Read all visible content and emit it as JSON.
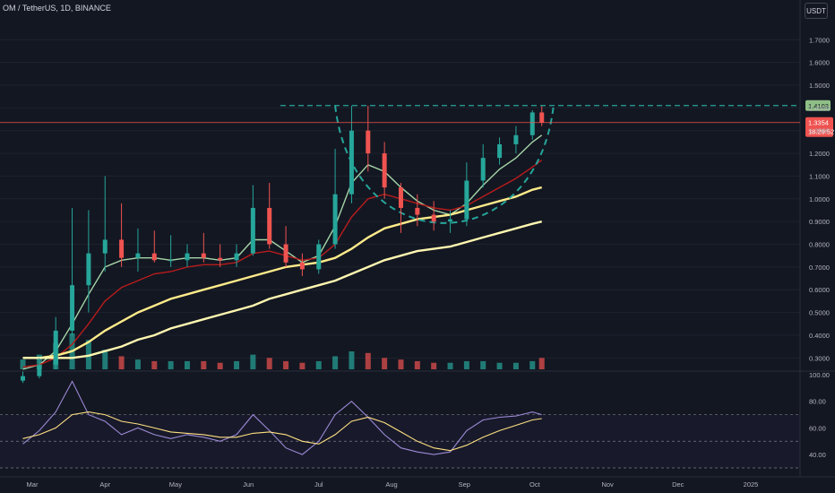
{
  "header": {
    "symbol_title": "OM / TetherUS, 1D, BINANCE",
    "unit_button": "USDT"
  },
  "colors": {
    "background": "#131722",
    "up": "#26a69a",
    "down": "#ef5350",
    "ema_short": "#a5d6a7",
    "ema_mid": "#b71c1c",
    "ma_long_1": "#ffeb8a",
    "ma_long_2": "#fff7b0",
    "pattern": "#26a69a",
    "price_line": "#ef5350",
    "rsi": "#9c8ad6",
    "rsi_ma": "#ffe082"
  },
  "price_axis": {
    "ticks": [
      "1.7000",
      "1.6000",
      "1.5000",
      "1.4000",
      "1.3000",
      "1.2000",
      "1.1000",
      "1.0000",
      "0.9000",
      "0.8000",
      "0.7000",
      "0.6000",
      "0.5000",
      "0.4000",
      "0.3000"
    ],
    "resistance_label": "1.4103",
    "last_price_label": "1.3354",
    "countdown_label": "18:29:52"
  },
  "rsi_axis": {
    "ticks": [
      "100.00",
      "80.00",
      "60.00",
      "40.00"
    ]
  },
  "time_axis": {
    "labels": [
      "Mar",
      "Apr",
      "May",
      "Jun",
      "Jul",
      "Aug",
      "Sep",
      "Oct",
      "Nov",
      "Dec",
      "2025"
    ]
  },
  "chart_data": {
    "type": "candlestick",
    "title": "OM / TetherUS, 1D, BINANCE",
    "ylim": [
      0.25,
      1.78
    ],
    "resistance": 1.4103,
    "last_price": 1.3354,
    "dates": [
      "2024-02-26",
      "2024-03-04",
      "2024-03-11",
      "2024-03-18",
      "2024-03-25",
      "2024-04-01",
      "2024-04-08",
      "2024-04-15",
      "2024-04-22",
      "2024-04-29",
      "2024-05-06",
      "2024-05-13",
      "2024-05-20",
      "2024-05-27",
      "2024-06-03",
      "2024-06-10",
      "2024-06-17",
      "2024-06-24",
      "2024-07-01",
      "2024-07-08",
      "2024-07-15",
      "2024-07-22",
      "2024-07-29",
      "2024-08-05",
      "2024-08-12",
      "2024-08-19",
      "2024-08-26",
      "2024-09-02",
      "2024-09-09",
      "2024-09-16",
      "2024-09-23",
      "2024-09-30",
      "2024-10-04"
    ],
    "open": [
      0.2,
      0.22,
      0.27,
      0.42,
      0.62,
      0.76,
      0.82,
      0.74,
      0.76,
      0.73,
      0.73,
      0.76,
      0.74,
      0.73,
      0.76,
      0.96,
      0.8,
      0.72,
      0.69,
      0.8,
      1.02,
      1.3,
      1.2,
      1.05,
      0.96,
      0.93,
      0.9,
      0.91,
      1.08,
      1.18,
      1.24,
      1.28,
      1.38
    ],
    "high": [
      0.24,
      0.3,
      0.48,
      0.96,
      0.95,
      1.1,
      0.98,
      0.87,
      0.86,
      0.84,
      0.8,
      0.85,
      0.8,
      0.8,
      1.06,
      1.07,
      0.88,
      0.76,
      0.82,
      1.22,
      1.41,
      1.41,
      1.25,
      1.07,
      1.02,
      0.99,
      0.95,
      1.16,
      1.24,
      1.27,
      1.32,
      1.39,
      1.41
    ],
    "low": [
      0.19,
      0.21,
      0.25,
      0.4,
      0.5,
      0.68,
      0.7,
      0.68,
      0.72,
      0.7,
      0.7,
      0.72,
      0.7,
      0.7,
      0.75,
      0.78,
      0.7,
      0.66,
      0.67,
      0.78,
      0.98,
      1.12,
      1.0,
      0.85,
      0.88,
      0.86,
      0.85,
      0.88,
      1.05,
      1.15,
      1.2,
      1.26,
      1.32
    ],
    "close": [
      0.22,
      0.27,
      0.42,
      0.62,
      0.76,
      0.82,
      0.74,
      0.76,
      0.73,
      0.73,
      0.76,
      0.74,
      0.73,
      0.76,
      0.96,
      0.8,
      0.72,
      0.69,
      0.8,
      1.02,
      1.3,
      1.2,
      1.05,
      0.96,
      0.93,
      0.9,
      0.91,
      1.08,
      1.18,
      1.24,
      1.28,
      1.38,
      1.3354
    ],
    "volume": [
      6,
      9,
      16,
      22,
      18,
      12,
      8,
      6,
      5,
      5,
      5,
      5,
      4,
      5,
      9,
      7,
      5,
      4,
      5,
      8,
      11,
      10,
      7,
      6,
      5,
      4,
      4,
      5,
      5,
      4,
      4,
      5,
      7
    ],
    "ema_short": [
      0.25,
      0.27,
      0.33,
      0.45,
      0.58,
      0.7,
      0.73,
      0.74,
      0.74,
      0.73,
      0.74,
      0.74,
      0.73,
      0.74,
      0.82,
      0.82,
      0.77,
      0.72,
      0.75,
      0.88,
      1.07,
      1.15,
      1.12,
      1.05,
      0.99,
      0.95,
      0.93,
      0.98,
      1.06,
      1.13,
      1.18,
      1.25,
      1.28
    ],
    "ema_mid": [
      0.26,
      0.27,
      0.3,
      0.36,
      0.45,
      0.55,
      0.61,
      0.64,
      0.67,
      0.68,
      0.7,
      0.71,
      0.71,
      0.72,
      0.76,
      0.77,
      0.75,
      0.73,
      0.74,
      0.8,
      0.92,
      1.0,
      1.02,
      1.0,
      0.98,
      0.96,
      0.95,
      0.97,
      1.01,
      1.05,
      1.09,
      1.14,
      1.17
    ],
    "ma_long_1": [
      0.3,
      0.3,
      0.31,
      0.33,
      0.37,
      0.42,
      0.46,
      0.5,
      0.53,
      0.56,
      0.58,
      0.6,
      0.62,
      0.64,
      0.66,
      0.68,
      0.7,
      0.71,
      0.72,
      0.74,
      0.78,
      0.83,
      0.87,
      0.89,
      0.91,
      0.92,
      0.93,
      0.95,
      0.97,
      0.99,
      1.01,
      1.04,
      1.05
    ],
    "ma_long_2": [
      0.3,
      0.3,
      0.3,
      0.3,
      0.31,
      0.33,
      0.35,
      0.38,
      0.4,
      0.43,
      0.45,
      0.47,
      0.49,
      0.51,
      0.53,
      0.56,
      0.58,
      0.6,
      0.62,
      0.64,
      0.67,
      0.7,
      0.73,
      0.75,
      0.77,
      0.78,
      0.79,
      0.81,
      0.83,
      0.85,
      0.87,
      0.89,
      0.9
    ],
    "rsi": {
      "ylim": [
        30,
        100
      ],
      "bands": [
        70,
        50,
        30
      ],
      "values": [
        48,
        58,
        72,
        95,
        70,
        65,
        55,
        60,
        55,
        52,
        55,
        53,
        50,
        55,
        70,
        58,
        45,
        40,
        50,
        70,
        80,
        68,
        55,
        45,
        42,
        40,
        42,
        58,
        66,
        68,
        69,
        72,
        70
      ],
      "ma": [
        52,
        55,
        60,
        70,
        72,
        70,
        65,
        63,
        60,
        57,
        56,
        55,
        53,
        53,
        56,
        57,
        55,
        50,
        48,
        55,
        65,
        68,
        64,
        57,
        50,
        45,
        43,
        47,
        53,
        58,
        62,
        66,
        67
      ]
    }
  }
}
